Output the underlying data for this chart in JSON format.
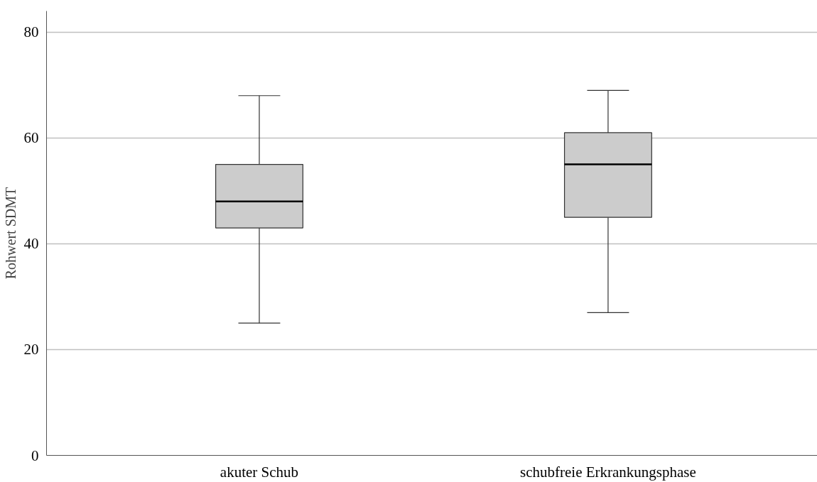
{
  "chart_data": {
    "type": "box",
    "ylabel": "Rohwert SDMT",
    "categories": [
      "akuter Schub",
      "schubfreie Erkrankungsphase"
    ],
    "boxes": [
      {
        "low": 25,
        "q1": 43,
        "median": 48,
        "q3": 55,
        "high": 68
      },
      {
        "low": 27,
        "q1": 45,
        "median": 55,
        "q3": 61,
        "high": 69
      }
    ],
    "color": "#cccccc",
    "ylim": [
      0,
      84
    ],
    "yticks": [
      0,
      20,
      40,
      60,
      80
    ],
    "grid": "y"
  }
}
